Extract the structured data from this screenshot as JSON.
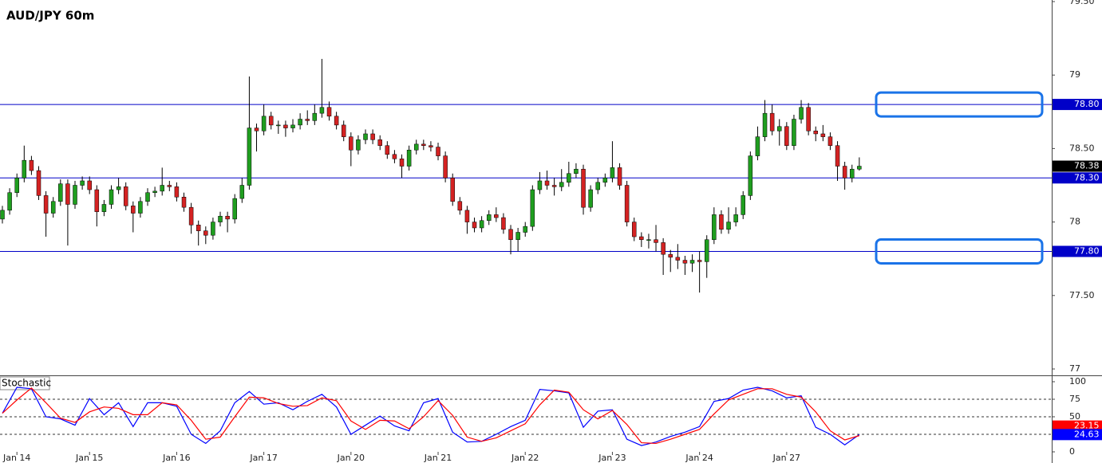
{
  "chart_data": [
    {
      "type": "candlestick",
      "title": "AUD/JPY 60m",
      "x": [
        0,
        1,
        2,
        3,
        4,
        5,
        6,
        7,
        8,
        9,
        10,
        11,
        12,
        13,
        14,
        15,
        16,
        17,
        18,
        19,
        20,
        21,
        22,
        23,
        24,
        25,
        26,
        27,
        28,
        29,
        30,
        31,
        32,
        33,
        34,
        35,
        36,
        37,
        38,
        39,
        40,
        41,
        42,
        43,
        44,
        45,
        46,
        47,
        48,
        49,
        50,
        51,
        52,
        53,
        54,
        55,
        56,
        57,
        58,
        59,
        60,
        61,
        62,
        63,
        64,
        65,
        66,
        67,
        68,
        69,
        70,
        71,
        72,
        73,
        74,
        75,
        76,
        77,
        78,
        79,
        80,
        81,
        82,
        83,
        84,
        85,
        86,
        87,
        88,
        89,
        90,
        91,
        92,
        93,
        94,
        95,
        96,
        97,
        98,
        99,
        100,
        101,
        102,
        103,
        104,
        105,
        106,
        107,
        108,
        109,
        110,
        111,
        112,
        113,
        114,
        115,
        116,
        117,
        118
      ],
      "open": [
        78.02,
        78.08,
        78.2,
        78.3,
        78.42,
        78.35,
        78.18,
        78.06,
        78.14,
        78.26,
        78.12,
        78.25,
        78.28,
        78.22,
        78.07,
        78.12,
        78.22,
        78.24,
        78.11,
        78.06,
        78.14,
        78.2,
        78.21,
        78.25,
        78.24,
        78.17,
        78.1,
        77.98,
        77.94,
        77.91,
        78.0,
        78.04,
        78.02,
        78.16,
        78.25,
        78.64,
        78.62,
        78.72,
        78.66,
        78.66,
        78.64,
        78.66,
        78.7,
        78.69,
        78.74,
        78.78,
        78.72,
        78.66,
        78.58,
        78.49,
        78.56,
        78.6,
        78.56,
        78.52,
        78.46,
        78.43,
        78.38,
        78.49,
        78.53,
        78.52,
        78.51,
        78.45,
        78.3,
        78.14,
        78.08,
        78.0,
        77.96,
        78.01,
        78.05,
        78.03,
        77.95,
        77.88,
        77.93,
        77.97,
        78.22,
        78.28,
        78.25,
        78.24,
        78.27,
        78.33,
        78.36,
        78.1,
        78.22,
        78.27,
        78.3,
        78.37,
        78.25,
        78.0,
        77.9,
        77.88,
        77.88,
        77.86,
        77.78,
        77.76,
        77.74,
        77.72,
        77.74,
        77.73,
        77.88,
        78.05,
        77.95,
        78.0,
        78.05,
        78.18,
        78.45,
        78.58,
        78.74,
        78.62,
        78.65,
        78.52,
        78.7,
        78.78,
        78.62,
        78.6,
        78.58,
        78.52,
        78.38,
        78.3,
        78.36
      ],
      "high": [
        78.11,
        78.23,
        78.33,
        78.52,
        78.45,
        78.38,
        78.21,
        78.17,
        78.29,
        78.29,
        78.28,
        78.31,
        78.31,
        78.25,
        78.15,
        78.25,
        78.3,
        78.27,
        78.14,
        78.17,
        78.23,
        78.24,
        78.37,
        78.28,
        78.27,
        78.2,
        78.13,
        78.01,
        77.97,
        78.03,
        78.07,
        78.07,
        78.19,
        78.3,
        78.99,
        78.67,
        78.8,
        78.75,
        78.69,
        78.69,
        78.7,
        78.74,
        78.76,
        78.8,
        79.11,
        78.82,
        78.75,
        78.69,
        78.61,
        78.59,
        78.63,
        78.63,
        78.59,
        78.55,
        78.49,
        78.46,
        78.52,
        78.56,
        78.56,
        78.55,
        78.54,
        78.48,
        78.33,
        78.17,
        78.11,
        78.03,
        78.04,
        78.08,
        78.1,
        78.06,
        77.98,
        77.96,
        78.0,
        78.25,
        78.34,
        78.35,
        78.3,
        78.36,
        78.41,
        78.4,
        78.39,
        78.25,
        78.3,
        78.33,
        78.55,
        78.4,
        78.28,
        78.03,
        77.93,
        77.92,
        77.98,
        77.89,
        77.81,
        77.85,
        77.77,
        77.78,
        77.8,
        77.91,
        78.1,
        78.08,
        78.1,
        78.1,
        78.21,
        78.48,
        78.65,
        78.83,
        78.8,
        78.7,
        78.68,
        78.73,
        78.83,
        78.81,
        78.65,
        78.66,
        78.61,
        78.55,
        78.41,
        78.39,
        78.44
      ],
      "low": [
        77.99,
        78.05,
        78.17,
        78.27,
        78.32,
        78.15,
        77.9,
        78.03,
        78.11,
        77.84,
        78.09,
        78.22,
        78.19,
        77.97,
        78.04,
        78.09,
        78.19,
        78.08,
        77.93,
        78.03,
        78.11,
        78.17,
        78.18,
        78.21,
        78.14,
        78.07,
        77.92,
        77.84,
        77.85,
        77.88,
        77.97,
        77.93,
        77.99,
        78.13,
        78.22,
        78.48,
        78.59,
        78.63,
        78.6,
        78.58,
        78.61,
        78.63,
        78.66,
        78.66,
        78.71,
        78.69,
        78.63,
        78.55,
        78.38,
        78.46,
        78.53,
        78.53,
        78.49,
        78.43,
        78.4,
        78.3,
        78.35,
        78.46,
        78.49,
        78.48,
        78.42,
        78.27,
        78.11,
        78.05,
        77.92,
        77.93,
        77.93,
        77.98,
        78.0,
        77.92,
        77.78,
        77.8,
        77.9,
        77.94,
        78.19,
        78.22,
        78.18,
        78.21,
        78.24,
        78.3,
        78.05,
        78.07,
        78.19,
        78.24,
        78.27,
        78.22,
        77.97,
        77.87,
        77.83,
        77.82,
        77.8,
        77.64,
        77.66,
        77.68,
        77.64,
        77.66,
        77.52,
        77.62,
        77.85,
        77.92,
        77.92,
        77.97,
        78.02,
        78.15,
        78.42,
        78.55,
        78.59,
        78.52,
        78.49,
        78.49,
        78.67,
        78.59,
        78.55,
        78.55,
        78.49,
        78.28,
        78.22,
        78.27,
        78.35
      ],
      "close": [
        78.08,
        78.2,
        78.3,
        78.42,
        78.35,
        78.18,
        78.06,
        78.14,
        78.26,
        78.12,
        78.25,
        78.28,
        78.22,
        78.07,
        78.12,
        78.22,
        78.24,
        78.11,
        78.06,
        78.14,
        78.2,
        78.21,
        78.25,
        78.24,
        78.17,
        78.1,
        77.98,
        77.94,
        77.91,
        78.0,
        78.04,
        78.02,
        78.16,
        78.25,
        78.64,
        78.62,
        78.72,
        78.66,
        78.66,
        78.64,
        78.66,
        78.7,
        78.69,
        78.74,
        78.78,
        78.72,
        78.66,
        78.58,
        78.49,
        78.56,
        78.6,
        78.56,
        78.52,
        78.46,
        78.43,
        78.38,
        78.49,
        78.53,
        78.52,
        78.51,
        78.45,
        78.3,
        78.14,
        78.08,
        78.0,
        77.96,
        78.01,
        78.05,
        78.03,
        77.95,
        77.88,
        77.93,
        77.97,
        78.22,
        78.28,
        78.25,
        78.24,
        78.27,
        78.33,
        78.36,
        78.1,
        78.22,
        78.27,
        78.3,
        78.37,
        78.25,
        78.0,
        77.9,
        77.88,
        77.88,
        77.86,
        77.78,
        77.76,
        77.74,
        77.72,
        77.74,
        77.73,
        77.88,
        78.05,
        77.95,
        78.0,
        78.05,
        78.18,
        78.45,
        78.58,
        78.74,
        78.62,
        78.65,
        78.52,
        78.7,
        78.78,
        78.62,
        78.6,
        78.58,
        78.52,
        78.38,
        78.3,
        78.36,
        78.38
      ],
      "up_color": "#1f9e1f",
      "down_color": "#d42222",
      "wick_color": "#000000",
      "xlim": [
        -0.33,
        144.5
      ],
      "ylim": [
        77,
        79.5
      ],
      "yticks": [
        77,
        {
          "value": 77.5,
          "label": "77.50"
        },
        78,
        {
          "value": 78.5,
          "label": "78.50"
        },
        79,
        {
          "value": 79.5,
          "label": "79.50"
        }
      ],
      "levels": [
        {
          "value": 78.8,
          "label": "78.80"
        },
        {
          "value": 78.3,
          "label": "78.30"
        },
        {
          "value": 77.8,
          "label": "77.80"
        }
      ],
      "level_color": "#0000c8",
      "box_color": "#1a73e8"
    },
    {
      "type": "line",
      "title": "Stochastic",
      "x": [
        0,
        2,
        4,
        6,
        8,
        10,
        12,
        14,
        16,
        18,
        20,
        22,
        24,
        26,
        28,
        30,
        32,
        34,
        36,
        38,
        40,
        42,
        44,
        46,
        48,
        50,
        52,
        54,
        56,
        58,
        60,
        62,
        64,
        66,
        68,
        70,
        72,
        74,
        76,
        78,
        80,
        82,
        84,
        86,
        88,
        90,
        92,
        94,
        96,
        98,
        100,
        102,
        104,
        106,
        108,
        110,
        112,
        114,
        116,
        118
      ],
      "series": [
        {
          "color": "#0000ff",
          "values": [
            55,
            92,
            90,
            50,
            47,
            38,
            76,
            53,
            70,
            36,
            70,
            70,
            65,
            25,
            12,
            30,
            70,
            86,
            68,
            70,
            60,
            72,
            82,
            64,
            25,
            38,
            51,
            37,
            30,
            70,
            76,
            28,
            14,
            15,
            25,
            36,
            45,
            89,
            87,
            84,
            35,
            58,
            60,
            18,
            9,
            14,
            22,
            28,
            36,
            72,
            76,
            88,
            92,
            87,
            77,
            80,
            35,
            25,
            10,
            24.63
          ]
        },
        {
          "color": "#ff0000",
          "values": [
            55,
            74,
            91,
            70,
            48,
            42,
            57,
            64,
            62,
            53,
            53,
            70,
            67,
            45,
            18,
            21,
            50,
            78,
            77,
            69,
            65,
            66,
            77,
            73,
            44,
            32,
            45,
            44,
            33,
            50,
            73,
            52,
            21,
            15,
            20,
            30,
            40,
            67,
            88,
            85,
            60,
            47,
            59,
            39,
            13,
            12,
            18,
            25,
            32,
            54,
            74,
            82,
            90,
            90,
            82,
            78,
            57,
            30,
            17,
            23.15
          ]
        }
      ],
      "xlim": [
        -0.33,
        144.5
      ],
      "ylim": [
        0,
        100
      ],
      "yticks": [
        0,
        25,
        50,
        75,
        100
      ],
      "dashed_levels": [
        25,
        50,
        75
      ],
      "xticks": [
        {
          "value": 2,
          "label": "Jan 14"
        },
        {
          "value": 12,
          "label": "Jan 15"
        },
        {
          "value": 24,
          "label": "Jan 16"
        },
        {
          "value": 36,
          "label": "Jan 17"
        },
        {
          "value": 48,
          "label": "Jan 20"
        },
        {
          "value": 60,
          "label": "Jan 21"
        },
        {
          "value": 72,
          "label": "Jan 22"
        },
        {
          "value": 84,
          "label": "Jan 23"
        },
        {
          "value": 96,
          "label": "Jan 24"
        },
        {
          "value": 108,
          "label": "Jan 27"
        }
      ]
    }
  ]
}
